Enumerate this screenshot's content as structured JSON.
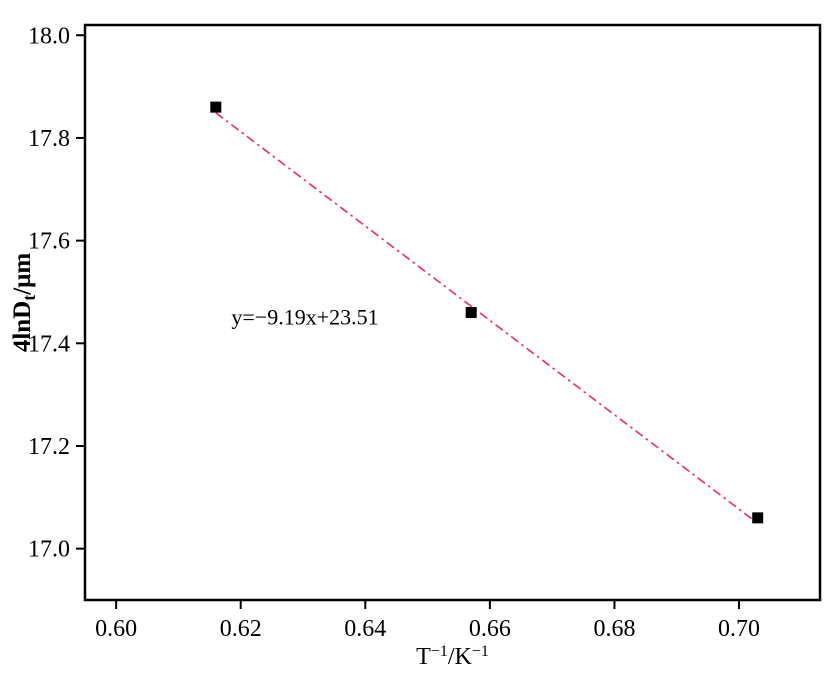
{
  "figure": {
    "background": "#ffffff"
  },
  "chart_data": {
    "type": "scatter",
    "title": "",
    "xlabel": "T⁻¹/K⁻¹",
    "ylabel": "4lnDt/μm",
    "xlabel_parts": [
      {
        "text": "T"
      },
      {
        "sup": "−1"
      },
      {
        "text": "/K"
      },
      {
        "sup": "−1"
      }
    ],
    "ylabel_parts": [
      {
        "text": "4lnD"
      },
      {
        "sub": "t"
      },
      {
        "text": "/μm"
      }
    ],
    "xlim": [
      0.595,
      0.713
    ],
    "ylim": [
      16.9,
      18.02
    ],
    "x_ticks": [
      {
        "v": 0.6,
        "label": "0.60"
      },
      {
        "v": 0.62,
        "label": "0.62"
      },
      {
        "v": 0.64,
        "label": "0.64"
      },
      {
        "v": 0.66,
        "label": "0.66"
      },
      {
        "v": 0.68,
        "label": "0.68"
      },
      {
        "v": 0.7,
        "label": "0.70"
      }
    ],
    "y_ticks": [
      {
        "v": 17.0,
        "label": "17.0"
      },
      {
        "v": 17.2,
        "label": "17.2"
      },
      {
        "v": 17.4,
        "label": "17.4"
      },
      {
        "v": 17.6,
        "label": "17.6"
      },
      {
        "v": 17.8,
        "label": "17.8"
      },
      {
        "v": 18.0,
        "label": "18.0"
      }
    ],
    "points": [
      {
        "x": 0.616,
        "y": 17.86
      },
      {
        "x": 0.657,
        "y": 17.46
      },
      {
        "x": 0.703,
        "y": 17.06
      }
    ],
    "fit_line": {
      "slope": -9.19,
      "intercept": 23.51,
      "x_start": 0.616,
      "x_end": 0.703,
      "color": "#ef2b63",
      "style": "dash-dot"
    },
    "annotation": {
      "text": "y=−9.19x+23.51",
      "x": 0.6185,
      "y": 17.437
    },
    "marker": {
      "shape": "square",
      "color": "#000000",
      "size": 11
    },
    "grid": false,
    "frame_color": "#000000",
    "legend": null
  }
}
